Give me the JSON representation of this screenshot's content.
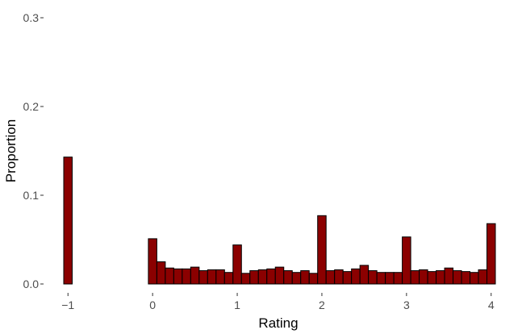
{
  "chart_data": {
    "type": "bar",
    "xlabel": "Rating",
    "ylabel": "Proportion",
    "xlim": [
      -1.05,
      4.05
    ],
    "ylim": [
      0,
      0.3
    ],
    "bin_width": 0.1,
    "x_ticks": [
      {
        "value": -1,
        "label": "−1"
      },
      {
        "value": 0,
        "label": "0"
      },
      {
        "value": 1,
        "label": "1"
      },
      {
        "value": 2,
        "label": "2"
      },
      {
        "value": 3,
        "label": "3"
      },
      {
        "value": 4,
        "label": "4"
      }
    ],
    "y_ticks": [
      {
        "value": 0,
        "label": "0.0"
      },
      {
        "value": 0.1,
        "label": "0.1"
      },
      {
        "value": 0.2,
        "label": "0.2"
      },
      {
        "value": 0.3,
        "label": "0.3"
      }
    ],
    "bins": [
      {
        "x": -1.0,
        "value": 0.143
      },
      {
        "x": -0.9,
        "value": 0
      },
      {
        "x": -0.8,
        "value": 0
      },
      {
        "x": -0.7,
        "value": 0
      },
      {
        "x": -0.6,
        "value": 0
      },
      {
        "x": -0.5,
        "value": 0
      },
      {
        "x": -0.4,
        "value": 0
      },
      {
        "x": -0.3,
        "value": 0
      },
      {
        "x": -0.2,
        "value": 0
      },
      {
        "x": -0.1,
        "value": 0
      },
      {
        "x": 0.0,
        "value": 0.051
      },
      {
        "x": 0.1,
        "value": 0.025
      },
      {
        "x": 0.2,
        "value": 0.018
      },
      {
        "x": 0.3,
        "value": 0.017
      },
      {
        "x": 0.4,
        "value": 0.017
      },
      {
        "x": 0.5,
        "value": 0.019
      },
      {
        "x": 0.6,
        "value": 0.015
      },
      {
        "x": 0.7,
        "value": 0.016
      },
      {
        "x": 0.8,
        "value": 0.016
      },
      {
        "x": 0.9,
        "value": 0.013
      },
      {
        "x": 1.0,
        "value": 0.044
      },
      {
        "x": 1.1,
        "value": 0.012
      },
      {
        "x": 1.2,
        "value": 0.015
      },
      {
        "x": 1.3,
        "value": 0.016
      },
      {
        "x": 1.4,
        "value": 0.017
      },
      {
        "x": 1.5,
        "value": 0.019
      },
      {
        "x": 1.6,
        "value": 0.015
      },
      {
        "x": 1.7,
        "value": 0.013
      },
      {
        "x": 1.8,
        "value": 0.015
      },
      {
        "x": 1.9,
        "value": 0.012
      },
      {
        "x": 2.0,
        "value": 0.077
      },
      {
        "x": 2.1,
        "value": 0.015
      },
      {
        "x": 2.2,
        "value": 0.016
      },
      {
        "x": 2.3,
        "value": 0.014
      },
      {
        "x": 2.4,
        "value": 0.017
      },
      {
        "x": 2.5,
        "value": 0.021
      },
      {
        "x": 2.6,
        "value": 0.015
      },
      {
        "x": 2.7,
        "value": 0.013
      },
      {
        "x": 2.8,
        "value": 0.013
      },
      {
        "x": 2.9,
        "value": 0.013
      },
      {
        "x": 3.0,
        "value": 0.053
      },
      {
        "x": 3.1,
        "value": 0.015
      },
      {
        "x": 3.2,
        "value": 0.016
      },
      {
        "x": 3.3,
        "value": 0.014
      },
      {
        "x": 3.4,
        "value": 0.015
      },
      {
        "x": 3.5,
        "value": 0.018
      },
      {
        "x": 3.6,
        "value": 0.015
      },
      {
        "x": 3.7,
        "value": 0.014
      },
      {
        "x": 3.8,
        "value": 0.013
      },
      {
        "x": 3.9,
        "value": 0.016
      },
      {
        "x": 4.0,
        "value": 0.068
      }
    ],
    "bar_color": "#8b0000",
    "bar_outline": "#000000",
    "grid": false
  }
}
